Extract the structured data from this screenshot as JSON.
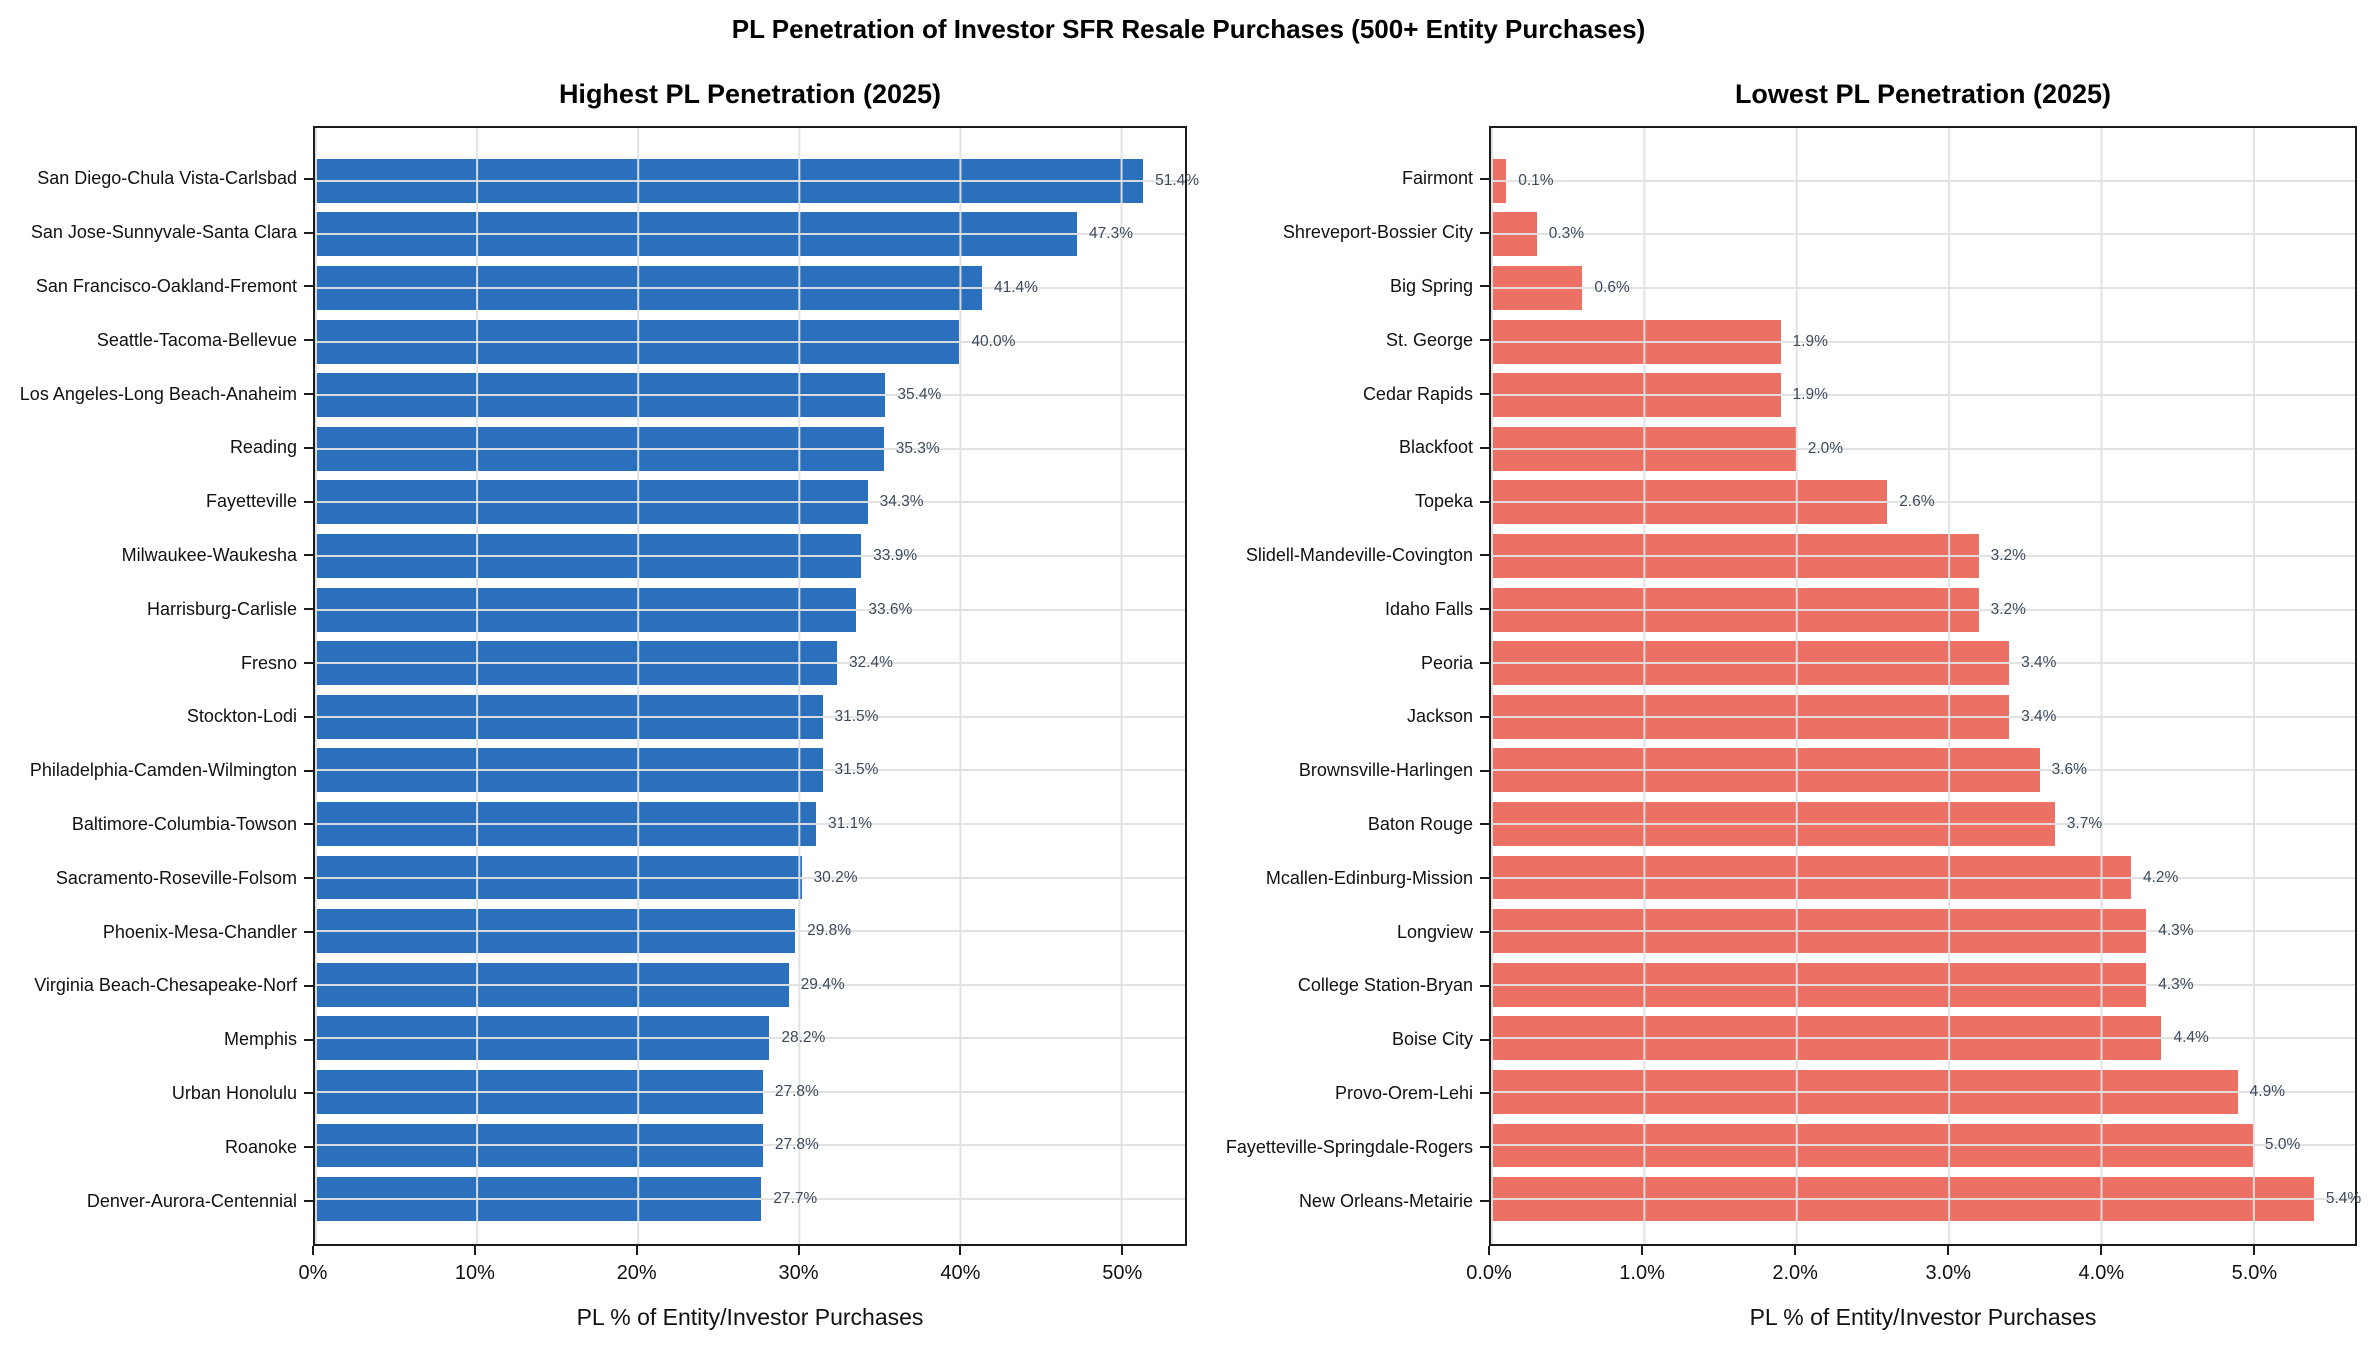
{
  "figure": {
    "title": "PL Penetration of Investor SFR Resale Purchases (500+ Entity Purchases)"
  },
  "chart_data": [
    {
      "type": "bar",
      "orientation": "horizontal",
      "title": "Highest PL Penetration (2025)",
      "xlabel": "PL % of Entity/Investor Purchases",
      "categories": [
        "San Diego-Chula Vista-Carlsbad",
        "San Jose-Sunnyvale-Santa Clara",
        "San Francisco-Oakland-Fremont",
        "Seattle-Tacoma-Bellevue",
        "Los Angeles-Long Beach-Anaheim",
        "Reading",
        "Fayetteville",
        "Milwaukee-Waukesha",
        "Harrisburg-Carlisle",
        "Fresno",
        "Stockton-Lodi",
        "Philadelphia-Camden-Wilmington",
        "Baltimore-Columbia-Towson",
        "Sacramento-Roseville-Folsom",
        "Phoenix-Mesa-Chandler",
        "Virginia Beach-Chesapeake-Norf",
        "Memphis",
        "Urban Honolulu",
        "Roanoke",
        "Denver-Aurora-Centennial"
      ],
      "values": [
        51.4,
        47.3,
        41.4,
        40.0,
        35.4,
        35.3,
        34.3,
        33.9,
        33.6,
        32.4,
        31.5,
        31.5,
        31.1,
        30.2,
        29.8,
        29.4,
        28.2,
        27.8,
        27.8,
        27.7
      ],
      "value_suffix": "%",
      "value_decimals": 1,
      "xticks": {
        "values": [
          0,
          10,
          20,
          30,
          40,
          50
        ],
        "labels": [
          "0%",
          "10%",
          "20%",
          "30%",
          "40%",
          "50%"
        ]
      },
      "xlim": [
        0,
        54
      ],
      "grid": true,
      "bar_color": "#2b70bd",
      "value_label_color": "#3b4a5c"
    },
    {
      "type": "bar",
      "orientation": "horizontal",
      "title": "Lowest PL Penetration (2025)",
      "xlabel": "PL % of Entity/Investor Purchases",
      "categories": [
        "Fairmont",
        "Shreveport-Bossier City",
        "Big Spring",
        "St. George",
        "Cedar Rapids",
        "Blackfoot",
        "Topeka",
        "Slidell-Mandeville-Covington",
        "Idaho Falls",
        "Peoria",
        "Jackson",
        "Brownsville-Harlingen",
        "Baton Rouge",
        "Mcallen-Edinburg-Mission",
        "Longview",
        "College Station-Bryan",
        "Boise City",
        "Provo-Orem-Lehi",
        "Fayetteville-Springdale-Rogers",
        "New Orleans-Metairie"
      ],
      "values": [
        0.1,
        0.3,
        0.6,
        1.9,
        1.9,
        2.0,
        2.6,
        3.2,
        3.2,
        3.4,
        3.4,
        3.6,
        3.7,
        4.2,
        4.3,
        4.3,
        4.4,
        4.9,
        5.0,
        5.4
      ],
      "value_suffix": "%",
      "value_decimals": 1,
      "xticks": {
        "values": [
          0,
          1,
          2,
          3,
          4,
          5
        ],
        "labels": [
          "0.0%",
          "1.0%",
          "2.0%",
          "3.0%",
          "4.0%",
          "5.0%"
        ]
      },
      "xlim": [
        0,
        5.67
      ],
      "grid": true,
      "bar_color": "#ec7164",
      "value_label_color": "#3b4a5c"
    }
  ]
}
